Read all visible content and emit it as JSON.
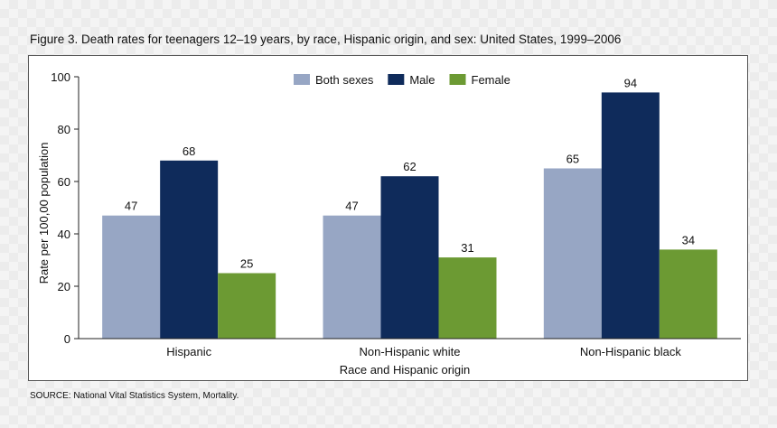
{
  "figure": {
    "title": "Figure 3. Death rates for teenagers 12–19 years, by race, Hispanic origin, and sex: United States, 1999–2006",
    "source": "SOURCE: National Vital Statistics System, Mortality."
  },
  "chart_data": {
    "type": "bar",
    "title": "Figure 3. Death rates for teenagers 12–19 years, by race, Hispanic origin, and sex: United States, 1999–2006",
    "xlabel": "Race and Hispanic origin",
    "ylabel": "Rate per 100,00 population",
    "ylim": [
      0,
      100
    ],
    "yticks": [
      "0",
      "20",
      "40",
      "60",
      "80",
      "100"
    ],
    "categories": [
      "Hispanic",
      "Non-Hispanic white",
      "Non-Hispanic black"
    ],
    "series": [
      {
        "name": "Both sexes",
        "color": "#97a6c4",
        "values": [
          47,
          47,
          65
        ]
      },
      {
        "name": "Male",
        "color": "#0f2b5b",
        "values": [
          68,
          62,
          94
        ]
      },
      {
        "name": "Female",
        "color": "#6c9a33",
        "values": [
          25,
          31,
          34
        ]
      }
    ],
    "legend_position": "top",
    "grid": false,
    "data_labels": true
  }
}
